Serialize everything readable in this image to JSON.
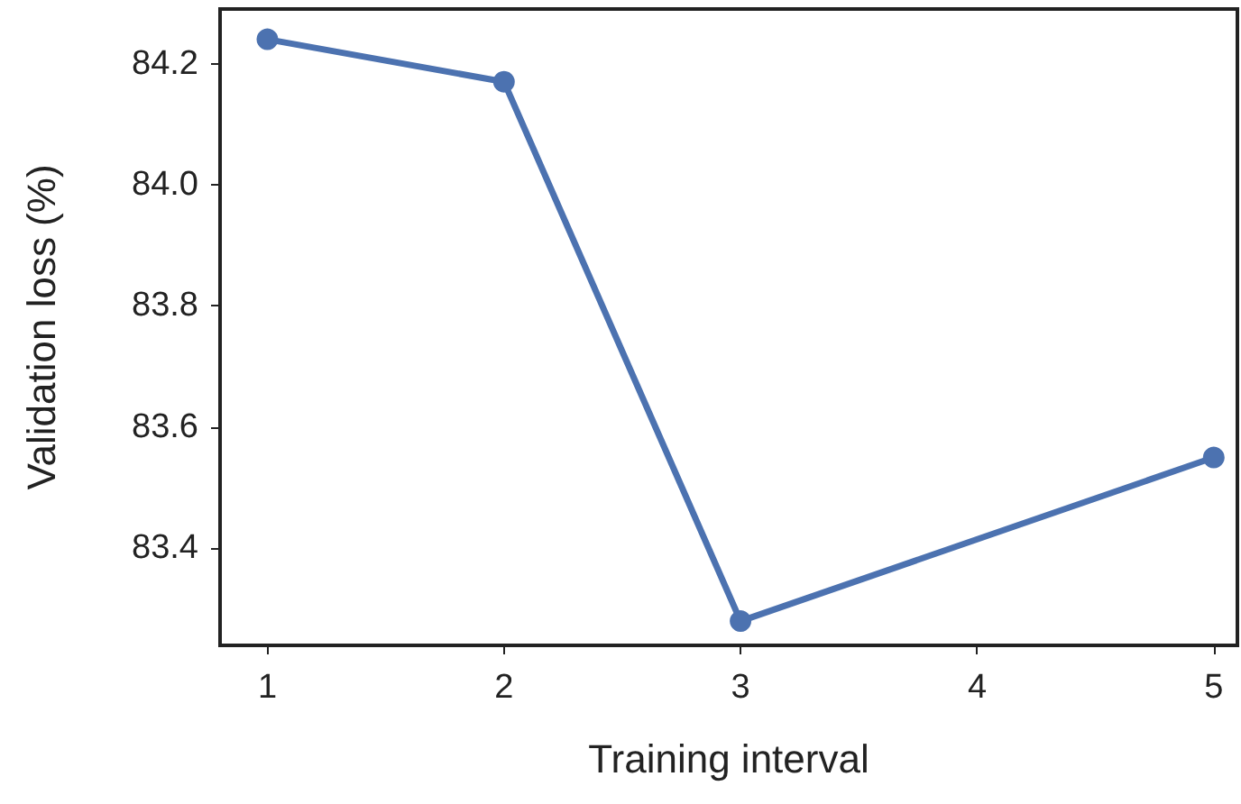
{
  "chart_data": {
    "type": "line",
    "xlabel": "Training interval",
    "ylabel": "Validation loss (%)",
    "x": [
      1,
      2,
      3,
      5
    ],
    "series": [
      {
        "color": "#4c72b0",
        "values": [
          84.24,
          84.17,
          83.28,
          83.55
        ]
      }
    ],
    "xlim": [
      0.8,
      5.1
    ],
    "xticks": [
      1,
      2,
      3,
      4,
      5
    ],
    "ylim": [
      83.24,
      84.29
    ],
    "yticks": [
      83.4,
      83.6,
      83.8,
      {
        "value": 84.0,
        "label": "84.0"
      },
      84.2
    ],
    "grid": false,
    "marker": "circle",
    "line_style": "solid"
  }
}
